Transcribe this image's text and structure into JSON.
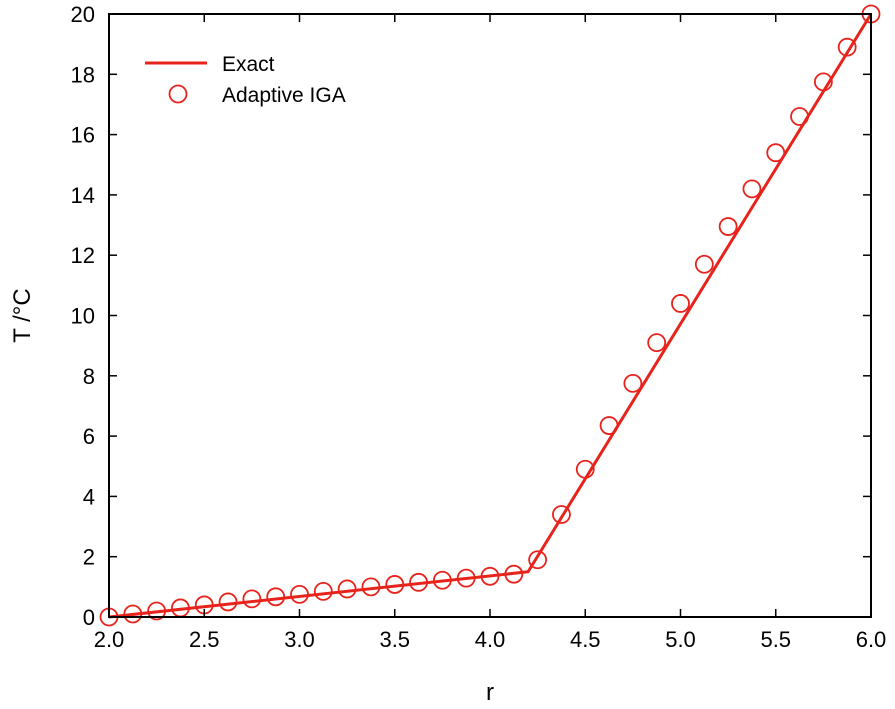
{
  "chart_data": {
    "type": "line",
    "title": "",
    "xlabel": "r",
    "ylabel": "T /°C",
    "xlim": [
      2.0,
      6.0
    ],
    "ylim": [
      0,
      20
    ],
    "x_ticks": [
      "2.0",
      "2.5",
      "3.0",
      "3.5",
      "4.0",
      "4.5",
      "5.0",
      "5.5",
      "6.0"
    ],
    "y_ticks": [
      "0",
      "2",
      "4",
      "6",
      "8",
      "10",
      "12",
      "14",
      "16",
      "18",
      "20"
    ],
    "grid": false,
    "legend_position": "top-left",
    "colors": {
      "series": "#e8231c",
      "axis": "#000000"
    },
    "series": [
      {
        "name": "Exact",
        "style": "line",
        "x": [
          2.0,
          4.2,
          6.0
        ],
        "y": [
          0.0,
          1.5,
          20.0
        ]
      },
      {
        "name": "Adaptive IGA",
        "style": "markers",
        "marker": "open-circle",
        "x": [
          2.0,
          2.125,
          2.25,
          2.375,
          2.5,
          2.625,
          2.75,
          2.875,
          3.0,
          3.125,
          3.25,
          3.375,
          3.5,
          3.625,
          3.75,
          3.875,
          4.0,
          4.125,
          4.25,
          4.375,
          4.5,
          4.625,
          4.75,
          4.875,
          5.0,
          5.125,
          5.25,
          5.375,
          5.5,
          5.625,
          5.75,
          5.875,
          6.0
        ],
        "y": [
          0.0,
          0.1,
          0.2,
          0.3,
          0.4,
          0.5,
          0.6,
          0.67,
          0.75,
          0.85,
          0.93,
          1.0,
          1.08,
          1.15,
          1.22,
          1.29,
          1.35,
          1.42,
          1.9,
          3.4,
          4.9,
          6.35,
          7.75,
          9.1,
          10.4,
          11.7,
          12.95,
          14.2,
          15.4,
          16.6,
          17.75,
          18.9,
          20.0
        ]
      }
    ]
  }
}
